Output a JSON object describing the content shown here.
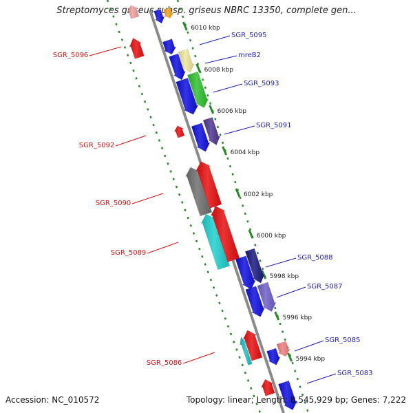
{
  "title": "Streptomyces griseus subsp. griseus NBRC 13350, complete gen...",
  "footer": {
    "accession": "Accession: NC_010572",
    "summary": "Topology: linear; Length: 8,545,929 bp; Genes: 7,222"
  },
  "colors": {
    "axis": "#8a8a8a",
    "boundary": "#2a8a2a",
    "strand_plus_label": "#1a1ab8",
    "strand_minus_label": "#d01010"
  },
  "ticks": [
    {
      "label": "6010 kbp",
      "kbp": 6010
    },
    {
      "label": "6008 kbp",
      "kbp": 6008
    },
    {
      "label": "6006 kbp",
      "kbp": 6006
    },
    {
      "label": "6004 kbp",
      "kbp": 6004
    },
    {
      "label": "6002 kbp",
      "kbp": 6002
    },
    {
      "label": "6000 kbp",
      "kbp": 6000
    },
    {
      "label": "5998 kbp",
      "kbp": 5998
    },
    {
      "label": "5996 kbp",
      "kbp": 5996
    },
    {
      "label": "5994 kbp",
      "kbp": 5994
    }
  ],
  "gene_labels": [
    {
      "text": "SGR_5095",
      "strand": "+"
    },
    {
      "text": "mreB2",
      "strand": "+"
    },
    {
      "text": "SGR_5093",
      "strand": "+"
    },
    {
      "text": "SGR_5091",
      "strand": "+"
    },
    {
      "text": "SGR_5088",
      "strand": "+"
    },
    {
      "text": "SGR_5087",
      "strand": "+"
    },
    {
      "text": "SGR_5085",
      "strand": "+"
    },
    {
      "text": "SGR_5083",
      "strand": "+"
    },
    {
      "text": "SGR_5096",
      "strand": "-"
    },
    {
      "text": "SGR_5092",
      "strand": "-"
    },
    {
      "text": "SGR_5090",
      "strand": "-"
    },
    {
      "text": "SGR_5089",
      "strand": "-"
    },
    {
      "text": "SGR_5086",
      "strand": "-"
    }
  ],
  "genes": [
    {
      "id": "g-top-a",
      "strand": "-",
      "color": "#f0a0a0"
    },
    {
      "id": "g-top-b",
      "strand": "+",
      "color": "#1010e0"
    },
    {
      "id": "g-top-c",
      "strand": "+",
      "color": "#f0a020"
    },
    {
      "id": "SGR_5096",
      "strand": "-",
      "color": "#e81010"
    },
    {
      "id": "SGR_5095",
      "strand": "+",
      "color": "#1010e0"
    },
    {
      "id": "SGR_5094",
      "strand": "+",
      "color": "#1010e0"
    },
    {
      "id": "mreB2",
      "strand": "+",
      "color": "#f0e8a0"
    },
    {
      "id": "SGR_5093",
      "strand": "+",
      "color": "#1010e0"
    },
    {
      "id": "SGR_5093b",
      "strand": "+",
      "color": "#30c030"
    },
    {
      "id": "SGR_5092",
      "strand": "-",
      "color": "#e81010"
    },
    {
      "id": "SGR_5091",
      "strand": "+",
      "color": "#1010e0"
    },
    {
      "id": "SGR_5091b",
      "strand": "+",
      "color": "#503890"
    },
    {
      "id": "SGR_5090a",
      "strand": "-",
      "color": "#707070"
    },
    {
      "id": "SGR_5090",
      "strand": "-",
      "color": "#e81010"
    },
    {
      "id": "SGR_5089a",
      "strand": "-",
      "color": "#20d0d0"
    },
    {
      "id": "SGR_5089",
      "strand": "-",
      "color": "#e81010"
    },
    {
      "id": "SGR_5088a",
      "strand": "+",
      "color": "#1010e0"
    },
    {
      "id": "SGR_5088",
      "strand": "+",
      "color": "#1a1a80"
    },
    {
      "id": "SGR_5087a",
      "strand": "+",
      "color": "#1010e0"
    },
    {
      "id": "SGR_5087",
      "strand": "+",
      "color": "#7060c8"
    },
    {
      "id": "SGR_5086",
      "strand": "-",
      "color": "#e81010"
    },
    {
      "id": "SGR_5086s",
      "strand": "-",
      "color": "#20c0c0"
    },
    {
      "id": "SGR_5085",
      "strand": "+",
      "color": "#1010e0"
    },
    {
      "id": "SGR_5084",
      "strand": "+",
      "color": "#f08080"
    },
    {
      "id": "g-bot-a",
      "strand": "-",
      "color": "#e81010"
    },
    {
      "id": "SGR_5083",
      "strand": "+",
      "color": "#1010e0"
    }
  ]
}
